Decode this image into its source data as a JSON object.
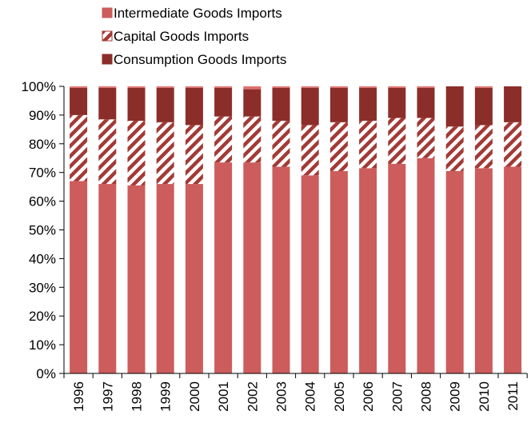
{
  "chart_data": {
    "type": "bar",
    "stacked": true,
    "categories": [
      "1996",
      "1997",
      "1998",
      "1999",
      "2000",
      "2001",
      "2002",
      "2003",
      "2004",
      "2005",
      "2006",
      "2007",
      "2008",
      "2009",
      "2010",
      "2011"
    ],
    "series": [
      {
        "name": "Intermediate Goods Imports",
        "color": "#cd5c5c",
        "pattern": "solid",
        "values": [
          67,
          66,
          65.5,
          66,
          66,
          73.5,
          73.5,
          72,
          69,
          70.5,
          71.5,
          73,
          75,
          70.5,
          71.5,
          72
        ]
      },
      {
        "name": "Capital Goods Imports",
        "color": "#a33a36",
        "pattern": "diagonal-stripes",
        "values": [
          23,
          22.5,
          22.5,
          21.5,
          20.5,
          16,
          16,
          16,
          17.5,
          17,
          16.5,
          16,
          14,
          15.5,
          15,
          15.5
        ]
      },
      {
        "name": "Consumption Goods Imports",
        "color": "#8b2e2a",
        "pattern": "solid",
        "values": [
          9.5,
          11,
          11.5,
          12,
          13,
          10,
          9.5,
          11.5,
          13,
          12,
          11.5,
          10.5,
          10.5,
          14,
          13,
          12.5
        ]
      }
    ],
    "top_strip_color": "#e0706c",
    "yticks": [
      "0%",
      "10%",
      "20%",
      "30%",
      "40%",
      "50%",
      "60%",
      "70%",
      "80%",
      "90%",
      "100%"
    ],
    "ylim": [
      0,
      100
    ],
    "grid": false,
    "legend_position": "top"
  }
}
